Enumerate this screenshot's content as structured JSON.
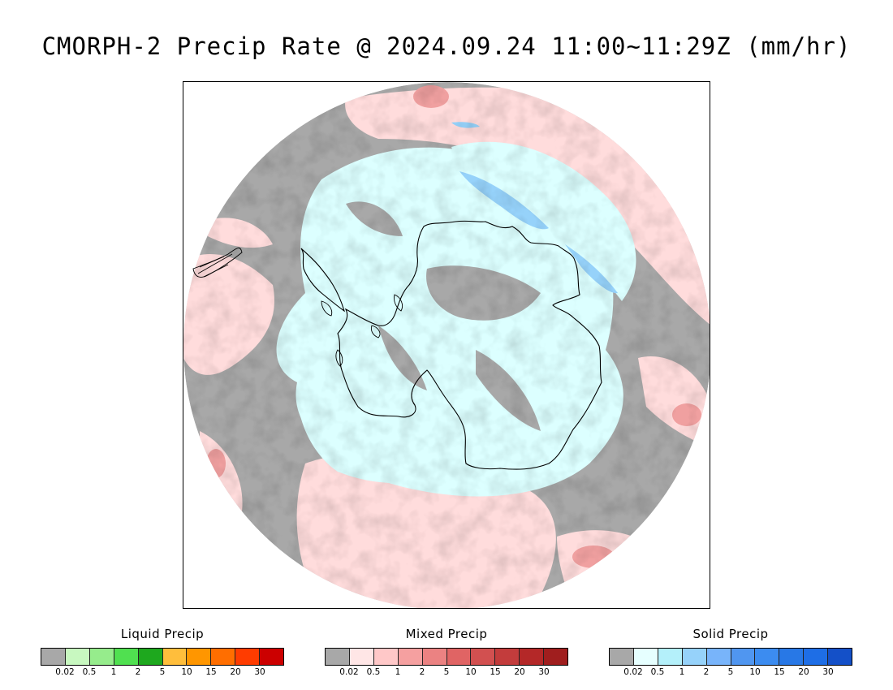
{
  "title": "CMORPH-2 Precip Rate @ 2024.09.24 11:00~11:29Z (mm/hr)",
  "colors": {
    "background_gray": "#a8a8a8",
    "mixed_light": "#ffdcdc",
    "solid_light": "#dcffff",
    "solid_medium": "#96d2fa",
    "mixed_medium": "#f0a0a0",
    "coastline": "#000000"
  },
  "legends": [
    {
      "title": "Liquid Precip",
      "colors": [
        "#a8a8a8",
        "#c8f8c0",
        "#96ec8c",
        "#50e050",
        "#1ea81e",
        "#ffbe3c",
        "#ff9600",
        "#ff6e00",
        "#ff3c00",
        "#cc0000"
      ],
      "ticks": [
        "0.02",
        "0.5",
        "1",
        "2",
        "5",
        "10",
        "15",
        "20",
        "30"
      ]
    },
    {
      "title": "Mixed Precip",
      "colors": [
        "#a8a8a8",
        "#ffe6e6",
        "#ffc8c8",
        "#f5a0a0",
        "#eb8282",
        "#e06464",
        "#d25050",
        "#c33c3c",
        "#b42828",
        "#a01e1e"
      ],
      "ticks": [
        "0.02",
        "0.5",
        "1",
        "2",
        "5",
        "10",
        "15",
        "20",
        "30"
      ]
    },
    {
      "title": "Solid Precip",
      "colors": [
        "#a8a8a8",
        "#e6ffff",
        "#b4f0fa",
        "#96d2fa",
        "#78b4fa",
        "#5096f0",
        "#3c8cf0",
        "#2878e6",
        "#1e6ee6",
        "#1450c8"
      ],
      "ticks": [
        "0.02",
        "0.5",
        "1",
        "2",
        "5",
        "10",
        "15",
        "20",
        "30"
      ]
    }
  ]
}
